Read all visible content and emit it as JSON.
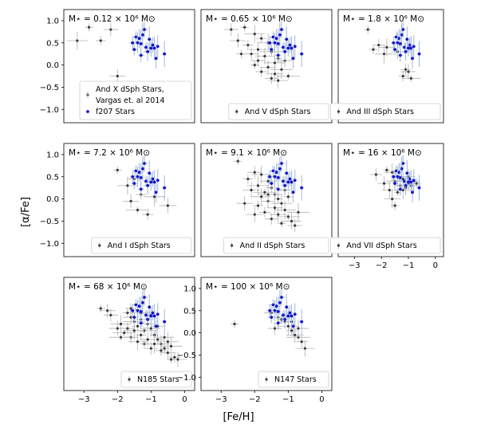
{
  "figure": {
    "ylabel": "[α/Fe]",
    "xlabel": "[Fe/H]"
  },
  "chart_data": {
    "type": "scatter",
    "x_axis": {
      "label": "[Fe/H]",
      "lim": [
        -3.6,
        0.3
      ],
      "ticks": [
        -3,
        -2,
        -1,
        0
      ]
    },
    "y_axis": {
      "label": "[α/Fe]",
      "lim": [
        -1.3,
        1.25
      ],
      "ticks": [
        -1.0,
        -0.5,
        0.0,
        0.5,
        1.0
      ]
    },
    "colors": {
      "dsph": "#3a3a3a",
      "dsph_err": "#b0b0b0",
      "f207": "#1515c8",
      "f207_err": "#9fb7e0"
    },
    "f207_stars": [
      [
        -1.2,
        0.8
      ],
      [
        -1.25,
        0.68
      ],
      [
        -1.45,
        0.63
      ],
      [
        -1.35,
        0.6
      ],
      [
        -1.05,
        0.58
      ],
      [
        -1.55,
        0.5
      ],
      [
        -1.4,
        0.5
      ],
      [
        -1.3,
        0.48
      ],
      [
        -0.95,
        0.45
      ],
      [
        -0.8,
        0.42
      ],
      [
        -1.15,
        0.4
      ],
      [
        -1.0,
        0.38
      ],
      [
        -0.9,
        0.38
      ],
      [
        -1.5,
        0.35
      ],
      [
        -1.1,
        0.3
      ],
      [
        -0.6,
        0.25
      ],
      [
        -1.3,
        0.22
      ],
      [
        -0.85,
        0.15
      ]
    ],
    "panels": [
      {
        "mass_label": "M⋆ = 0.12 × 10⁶ M⊙",
        "legend": [
          "And X dSph Stars,",
          "Vargas et. al 2014",
          "f207 Stars"
        ],
        "show_xticks": false,
        "show_yticks": true,
        "points": [
          [
            -2.85,
            0.85
          ],
          [
            -2.2,
            0.8
          ],
          [
            -3.2,
            0.55
          ],
          [
            -2.5,
            0.55
          ],
          [
            -2.0,
            -0.25
          ]
        ]
      },
      {
        "mass_label": "M⋆ = 0.65 × 10⁶ M⊙",
        "legend": [
          "And V dSph Stars"
        ],
        "show_xticks": false,
        "show_yticks": false,
        "points": [
          [
            -2.3,
            0.85
          ],
          [
            -2.7,
            0.8
          ],
          [
            -2.0,
            0.7
          ],
          [
            -1.8,
            0.6
          ],
          [
            -2.5,
            0.55
          ],
          [
            -1.6,
            0.5
          ],
          [
            -2.2,
            0.45
          ],
          [
            -1.9,
            0.35
          ],
          [
            -1.5,
            0.3
          ],
          [
            -2.1,
            0.25
          ],
          [
            -1.7,
            0.2
          ],
          [
            -1.3,
            0.15
          ],
          [
            -1.9,
            0.1
          ],
          [
            -1.4,
            0.05
          ],
          [
            -2.4,
            0.25
          ],
          [
            -1.6,
            -0.05
          ],
          [
            -1.2,
            -0.1
          ],
          [
            -1.8,
            -0.15
          ],
          [
            -1.4,
            -0.2
          ],
          [
            -1.0,
            -0.25
          ],
          [
            -1.5,
            -0.3
          ],
          [
            -1.3,
            -0.35
          ],
          [
            -2.0,
            0.0
          ],
          [
            -1.1,
            0.1
          ]
        ]
      },
      {
        "mass_label": "M⋆ = 1.8 × 10⁶ M⊙",
        "legend": [
          "And III dSph Stars"
        ],
        "show_xticks": false,
        "show_yticks": false,
        "points": [
          [
            -2.5,
            0.8
          ],
          [
            -2.1,
            0.45
          ],
          [
            -1.8,
            0.4
          ],
          [
            -2.3,
            0.35
          ],
          [
            -1.4,
            0.3
          ],
          [
            -1.9,
            0.25
          ],
          [
            -1.2,
            -0.25
          ],
          [
            -1.0,
            -0.15
          ],
          [
            -0.9,
            -0.3
          ],
          [
            -1.1,
            -0.1
          ]
        ]
      },
      {
        "mass_label": "M⋆ = 7.2 × 10⁶ M⊙",
        "legend": [
          "And I dSph Stars"
        ],
        "show_xticks": false,
        "show_yticks": true,
        "points": [
          [
            -2.0,
            0.65
          ],
          [
            -1.5,
            0.45
          ],
          [
            -1.7,
            0.3
          ],
          [
            -1.3,
            0.1
          ],
          [
            -1.6,
            -0.05
          ],
          [
            -0.9,
            0.05
          ],
          [
            -1.1,
            -0.35
          ],
          [
            -0.5,
            -0.15
          ],
          [
            -1.4,
            -0.25
          ]
        ]
      },
      {
        "mass_label": "M⋆ = 9.1 × 10⁶ M⊙",
        "legend": [
          "And II dSph Stars"
        ],
        "show_xticks": false,
        "show_yticks": false,
        "points": [
          [
            -2.5,
            0.85
          ],
          [
            -2.0,
            0.6
          ],
          [
            -1.8,
            0.55
          ],
          [
            -2.2,
            0.45
          ],
          [
            -1.6,
            0.4
          ],
          [
            -1.9,
            0.3
          ],
          [
            -1.5,
            0.25
          ],
          [
            -2.1,
            0.2
          ],
          [
            -1.7,
            0.15
          ],
          [
            -1.4,
            0.1
          ],
          [
            -1.8,
            0.05
          ],
          [
            -1.3,
            0.0
          ],
          [
            -1.6,
            -0.05
          ],
          [
            -1.2,
            -0.1
          ],
          [
            -1.9,
            -0.15
          ],
          [
            -1.4,
            -0.2
          ],
          [
            -1.1,
            -0.25
          ],
          [
            -1.7,
            -0.3
          ],
          [
            -1.3,
            -0.35
          ],
          [
            -1.0,
            -0.4
          ],
          [
            -1.5,
            -0.45
          ],
          [
            -0.9,
            -0.5
          ],
          [
            -1.2,
            -0.55
          ],
          [
            -0.8,
            -0.6
          ],
          [
            -1.6,
            0.1
          ],
          [
            -1.0,
            0.05
          ],
          [
            -2.3,
            -0.1
          ],
          [
            -0.7,
            -0.3
          ],
          [
            -1.1,
            0.2
          ],
          [
            -2.0,
            -0.35
          ]
        ]
      },
      {
        "mass_label": "M⋆ = 16 × 10⁶ M⊙",
        "legend": [
          "And VII dSph Stars"
        ],
        "show_xticks": true,
        "show_yticks": false,
        "points": [
          [
            -1.8,
            0.65
          ],
          [
            -2.2,
            0.55
          ],
          [
            -1.6,
            0.6
          ],
          [
            -1.4,
            0.5
          ],
          [
            -1.2,
            0.45
          ],
          [
            -1.5,
            0.4
          ],
          [
            -1.0,
            0.35
          ],
          [
            -1.3,
            0.3
          ],
          [
            -0.9,
            0.3
          ],
          [
            -1.1,
            0.25
          ],
          [
            -1.7,
            0.2
          ],
          [
            -1.4,
            0.15
          ],
          [
            -0.8,
            0.4
          ],
          [
            -1.6,
            0.0
          ],
          [
            -1.5,
            -0.15
          ],
          [
            -1.9,
            0.35
          ],
          [
            -1.2,
            0.2
          ],
          [
            -0.7,
            0.35
          ],
          [
            -1.0,
            0.5
          ]
        ]
      },
      {
        "mass_label": "M⋆ = 68 × 10⁶ M⊙",
        "legend": [
          "N185 Stars"
        ],
        "show_xticks": true,
        "show_yticks": false,
        "points": [
          [
            -2.5,
            0.55
          ],
          [
            -2.2,
            0.4
          ],
          [
            -1.9,
            0.2
          ],
          [
            -1.7,
            0.45
          ],
          [
            -1.6,
            0.35
          ],
          [
            -1.5,
            0.25
          ],
          [
            -1.4,
            0.15
          ],
          [
            -1.3,
            0.3
          ],
          [
            -1.2,
            0.05
          ],
          [
            -1.1,
            0.2
          ],
          [
            -1.0,
            0.1
          ],
          [
            -0.9,
            -0.05
          ],
          [
            -0.8,
            -0.15
          ],
          [
            -0.7,
            -0.25
          ],
          [
            -0.6,
            -0.35
          ],
          [
            -0.5,
            -0.45
          ],
          [
            -0.4,
            -0.3
          ],
          [
            -0.3,
            -0.55
          ],
          [
            -0.2,
            -0.6
          ],
          [
            -1.8,
            0.0
          ],
          [
            -1.6,
            -0.1
          ],
          [
            -1.4,
            -0.2
          ],
          [
            -1.2,
            -0.25
          ],
          [
            -1.0,
            -0.35
          ],
          [
            -1.5,
            0.05
          ],
          [
            -1.3,
            -0.05
          ],
          [
            -1.1,
            -0.15
          ],
          [
            -0.9,
            -0.25
          ],
          [
            -0.7,
            -0.4
          ],
          [
            -2.0,
            0.1
          ],
          [
            -1.9,
            -0.1
          ],
          [
            -1.7,
            0.1
          ],
          [
            -0.6,
            -0.1
          ],
          [
            -0.4,
            -0.6
          ],
          [
            -0.8,
            0.15
          ],
          [
            -1.3,
            0.45
          ],
          [
            -1.0,
            0.4
          ],
          [
            -2.3,
            0.5
          ],
          [
            -0.5,
            -0.2
          ],
          [
            -1.6,
            0.55
          ]
        ]
      },
      {
        "mass_label": "M⋆ = 100 × 10⁶ M⊙",
        "legend": [
          "N147 Stars"
        ],
        "show_xticks": true,
        "show_yticks": true,
        "points": [
          [
            -2.6,
            0.2
          ],
          [
            -1.5,
            0.45
          ],
          [
            -1.3,
            0.35
          ],
          [
            -1.2,
            0.3
          ],
          [
            -1.1,
            0.25
          ],
          [
            -1.0,
            0.15
          ],
          [
            -0.9,
            0.05
          ],
          [
            -0.8,
            -0.05
          ],
          [
            -0.7,
            -0.1
          ],
          [
            -0.6,
            -0.2
          ],
          [
            -0.5,
            -0.35
          ],
          [
            -0.9,
            0.25
          ],
          [
            -1.4,
            0.1
          ],
          [
            -0.7,
            0.1
          ]
        ]
      }
    ]
  }
}
